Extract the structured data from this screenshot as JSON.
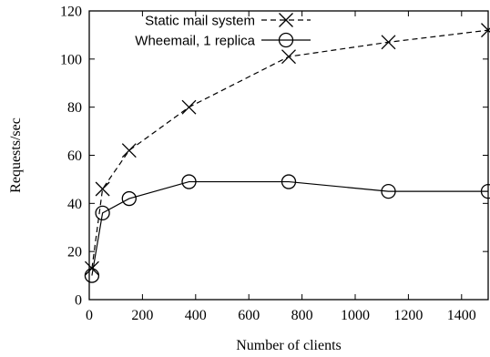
{
  "chart_data": {
    "type": "line",
    "xlabel": "Number of clients",
    "ylabel": "Requests/sec",
    "xlim": [
      0,
      1500
    ],
    "ylim": [
      0,
      120
    ],
    "x_ticks": [
      0,
      200,
      400,
      600,
      800,
      1000,
      1200,
      1400
    ],
    "y_ticks": [
      0,
      20,
      40,
      60,
      80,
      100,
      120
    ],
    "grid": false,
    "legend_position": "top-left",
    "series": [
      {
        "name": "Static mail system",
        "marker": "x",
        "line": "dashed",
        "x": [
          10,
          50,
          150,
          375,
          750,
          1125,
          1500
        ],
        "y": [
          13,
          46,
          62,
          80,
          101,
          107,
          112
        ]
      },
      {
        "name": "Wheemail, 1 replica",
        "marker": "circle",
        "line": "solid",
        "x": [
          10,
          50,
          150,
          375,
          750,
          1125,
          1500
        ],
        "y": [
          10,
          36,
          42,
          49,
          49,
          45,
          45
        ]
      }
    ]
  }
}
